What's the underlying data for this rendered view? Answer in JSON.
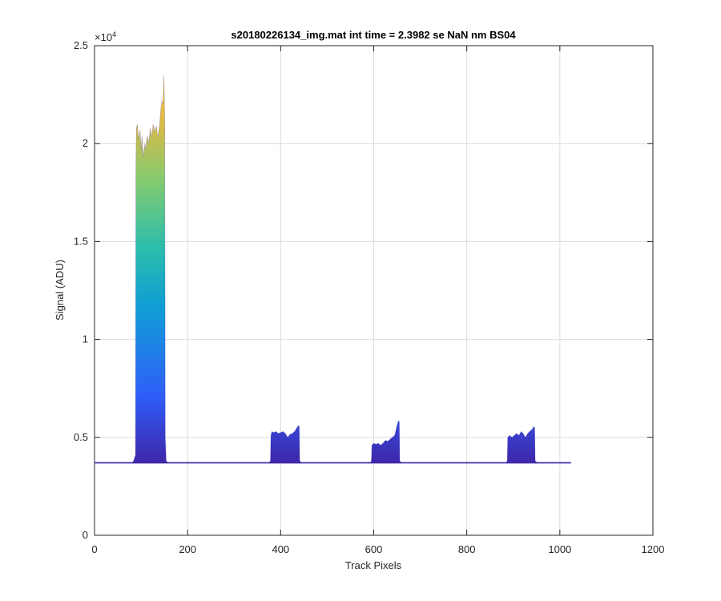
{
  "chart_data": {
    "type": "area",
    "title": "s20180226134_img.mat int time = 2.3982 se  NaN nm BS04",
    "xlabel": "Track Pixels",
    "ylabel": "Signal (ADU)",
    "xlim": [
      0,
      1200
    ],
    "ylim": [
      0,
      25000
    ],
    "grid": true,
    "y_exponent_label": "×10",
    "y_exponent_power": "4",
    "x_ticks": [
      {
        "value": 0,
        "label": "0"
      },
      {
        "value": 200,
        "label": "200"
      },
      {
        "value": 400,
        "label": "400"
      },
      {
        "value": 600,
        "label": "600"
      },
      {
        "value": 800,
        "label": "800"
      },
      {
        "value": 1000,
        "label": "1000"
      },
      {
        "value": 1200,
        "label": "1200"
      }
    ],
    "y_ticks": [
      {
        "value": 0,
        "label": "0"
      },
      {
        "value": 5000,
        "label": "0.5"
      },
      {
        "value": 10000,
        "label": "1"
      },
      {
        "value": 15000,
        "label": "1.5"
      },
      {
        "value": 20000,
        "label": "2"
      },
      {
        "value": 25000,
        "label": "2.5"
      }
    ],
    "baseline": 3700,
    "x_end": 1024,
    "colormap": [
      "#3e26a8",
      "#2f5df9",
      "#0f9ed4",
      "#2bbdac",
      "#82ca70",
      "#e1b944",
      "#f9d325"
    ],
    "peaks": [
      {
        "start": 83,
        "end": 153,
        "points": [
          [
            80,
            3700
          ],
          [
            84,
            3800
          ],
          [
            88,
            4100
          ],
          [
            89,
            19000
          ],
          [
            90,
            20800
          ],
          [
            92,
            21000
          ],
          [
            95,
            20200
          ],
          [
            98,
            20700
          ],
          [
            100,
            19600
          ],
          [
            102,
            20400
          ],
          [
            105,
            19300
          ],
          [
            108,
            20000
          ],
          [
            110,
            19700
          ],
          [
            113,
            20400
          ],
          [
            116,
            20000
          ],
          [
            120,
            20800
          ],
          [
            123,
            20300
          ],
          [
            126,
            21000
          ],
          [
            130,
            20600
          ],
          [
            133,
            20900
          ],
          [
            136,
            20300
          ],
          [
            140,
            21000
          ],
          [
            143,
            21900
          ],
          [
            145,
            22200
          ],
          [
            147,
            22000
          ],
          [
            149,
            23500
          ],
          [
            150,
            22500
          ],
          [
            151,
            21000
          ],
          [
            152,
            5000
          ],
          [
            154,
            3800
          ],
          [
            158,
            3700
          ]
        ]
      },
      {
        "start": 378,
        "end": 443,
        "points": [
          [
            375,
            3700
          ],
          [
            378,
            3800
          ],
          [
            379,
            5100
          ],
          [
            381,
            5300
          ],
          [
            385,
            5250
          ],
          [
            390,
            5300
          ],
          [
            395,
            5200
          ],
          [
            400,
            5250
          ],
          [
            405,
            5300
          ],
          [
            410,
            5200
          ],
          [
            415,
            5000
          ],
          [
            420,
            5150
          ],
          [
            425,
            5200
          ],
          [
            430,
            5300
          ],
          [
            435,
            5500
          ],
          [
            438,
            5600
          ],
          [
            440,
            5550
          ],
          [
            441,
            3800
          ],
          [
            445,
            3700
          ]
        ]
      },
      {
        "start": 595,
        "end": 657,
        "points": [
          [
            592,
            3700
          ],
          [
            595,
            3800
          ],
          [
            596,
            4600
          ],
          [
            600,
            4700
          ],
          [
            605,
            4650
          ],
          [
            610,
            4700
          ],
          [
            615,
            4600
          ],
          [
            620,
            4700
          ],
          [
            625,
            4850
          ],
          [
            630,
            4800
          ],
          [
            635,
            4900
          ],
          [
            640,
            5000
          ],
          [
            645,
            5100
          ],
          [
            650,
            5600
          ],
          [
            653,
            5850
          ],
          [
            655,
            5800
          ],
          [
            656,
            3800
          ],
          [
            660,
            3700
          ]
        ]
      },
      {
        "start": 887,
        "end": 950,
        "points": [
          [
            884,
            3700
          ],
          [
            887,
            3800
          ],
          [
            888,
            5000
          ],
          [
            892,
            5100
          ],
          [
            897,
            5000
          ],
          [
            902,
            5100
          ],
          [
            907,
            5200
          ],
          [
            912,
            5100
          ],
          [
            917,
            5300
          ],
          [
            921,
            5200
          ],
          [
            926,
            5000
          ],
          [
            931,
            5200
          ],
          [
            935,
            5300
          ],
          [
            940,
            5400
          ],
          [
            944,
            5550
          ],
          [
            946,
            5500
          ],
          [
            947,
            3800
          ],
          [
            952,
            3700
          ]
        ]
      }
    ]
  }
}
